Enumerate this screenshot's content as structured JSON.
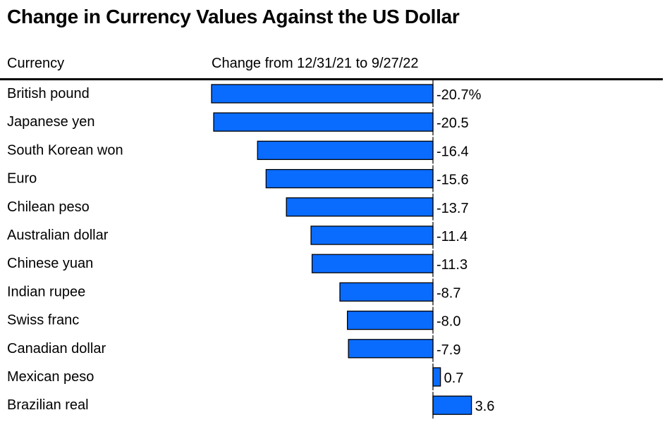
{
  "chart_data": {
    "type": "bar",
    "orientation": "horizontal",
    "title": "Change in Currency Values Against the US Dollar",
    "column_headers": [
      "Currency",
      "Change from 12/31/21 to 9/27/22"
    ],
    "categories": [
      "British pound",
      "Japanese yen",
      "South Korean won",
      "Euro",
      "Chilean peso",
      "Australian dollar",
      "Chinese yuan",
      "Indian rupee",
      "Swiss franc",
      "Canadian dollar",
      "Mexican peso",
      "Brazilian real"
    ],
    "values": [
      -20.7,
      -20.5,
      -16.4,
      -15.6,
      -13.7,
      -11.4,
      -11.3,
      -8.7,
      -8.0,
      -7.9,
      0.7,
      3.6
    ],
    "value_labels": [
      "-20.7%",
      "-20.5",
      "-16.4",
      "-15.6",
      "-13.7",
      "-11.4",
      "-11.3",
      "-8.7",
      "-8.0",
      "-7.9",
      "0.7",
      "3.6"
    ],
    "unit": "%",
    "xlim": [
      -20.7,
      3.6
    ],
    "bar_color": "#0a6cff",
    "bar_stroke": "#000000"
  }
}
